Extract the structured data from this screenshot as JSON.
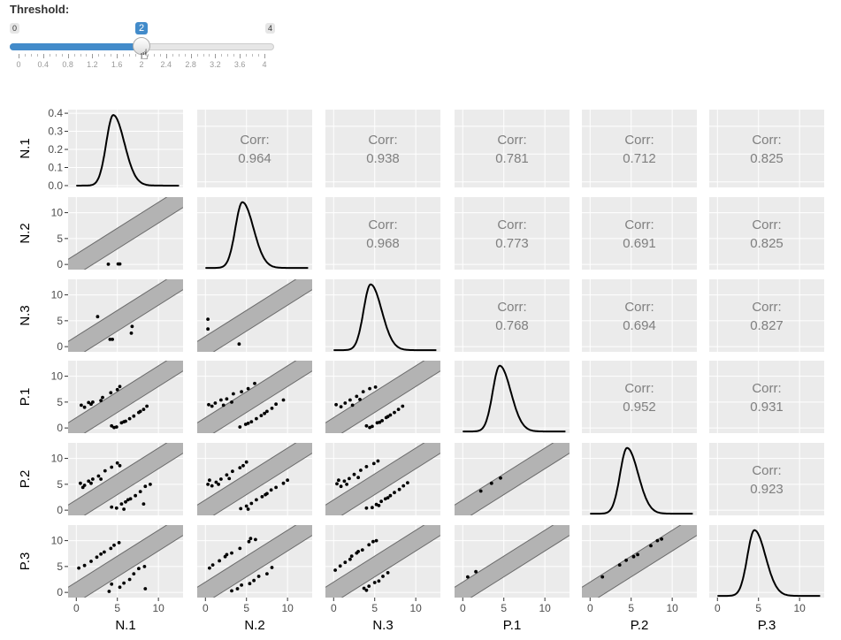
{
  "slider": {
    "label": "Threshold:",
    "min_label": "0",
    "max_label": "4",
    "value_label": "2",
    "min": 0,
    "max": 4,
    "value": 2,
    "tick_labels": [
      "0",
      "0.4",
      "0.8",
      "1.2",
      "1.6",
      "2",
      "2.4",
      "2.8",
      "3.2",
      "3.6",
      "4"
    ],
    "accent_color": "#428bca"
  },
  "chart_data": {
    "type": "scatter-matrix",
    "variables": [
      "N.1",
      "N.2",
      "N.3",
      "P.1",
      "P.2",
      "P.3"
    ],
    "correlation_prefix": "Corr:",
    "correlations": [
      {
        "row": "N.1",
        "col": "N.2",
        "value": "0.964"
      },
      {
        "row": "N.1",
        "col": "N.3",
        "value": "0.938"
      },
      {
        "row": "N.1",
        "col": "P.1",
        "value": "0.781"
      },
      {
        "row": "N.1",
        "col": "P.2",
        "value": "0.712"
      },
      {
        "row": "N.1",
        "col": "P.3",
        "value": "0.825"
      },
      {
        "row": "N.2",
        "col": "N.3",
        "value": "0.968"
      },
      {
        "row": "N.2",
        "col": "P.1",
        "value": "0.773"
      },
      {
        "row": "N.2",
        "col": "P.2",
        "value": "0.691"
      },
      {
        "row": "N.2",
        "col": "P.3",
        "value": "0.825"
      },
      {
        "row": "N.3",
        "col": "P.1",
        "value": "0.768"
      },
      {
        "row": "N.3",
        "col": "P.2",
        "value": "0.694"
      },
      {
        "row": "N.3",
        "col": "P.3",
        "value": "0.827"
      },
      {
        "row": "P.1",
        "col": "P.2",
        "value": "0.952"
      },
      {
        "row": "P.1",
        "col": "P.3",
        "value": "0.931"
      },
      {
        "row": "P.2",
        "col": "P.3",
        "value": "0.923"
      }
    ],
    "axis_range": [
      -1,
      13
    ],
    "axis_ticks": [
      0,
      5,
      10
    ],
    "axis_tick_labels": [
      "0",
      "5",
      "10"
    ],
    "density_y_range": [
      -0.01,
      0.42
    ],
    "density_y_ticks": [
      0,
      0.1,
      0.2,
      0.3,
      0.4
    ],
    "density_y_tick_labels": [
      "0.0",
      "0.1",
      "0.2",
      "0.3",
      "0.4"
    ],
    "band_half_width": 2,
    "density_peak": 0.39,
    "density_mode": 4.5,
    "colors": {
      "panel_bg": "#ebebeb",
      "gridline": "#ffffff",
      "band_fill": "#b3b3b3",
      "band_edge": "#6b6b6b",
      "point": "#000000",
      "corr_text": "#7f7f7f"
    },
    "outlier_points": {
      "N.2|N.1": [
        [
          3.9,
          0.05
        ],
        [
          5.1,
          0.1
        ],
        [
          5.3,
          0.1
        ]
      ],
      "N.3|N.1": [
        [
          2.6,
          5.8
        ],
        [
          4.1,
          1.4
        ],
        [
          4.4,
          1.4
        ],
        [
          6.8,
          3.9
        ],
        [
          6.7,
          2.6
        ]
      ],
      "N.3|N.2": [
        [
          0.3,
          5.3
        ],
        [
          0.3,
          3.4
        ],
        [
          4.1,
          0.5
        ]
      ],
      "P.1|N.1": [
        [
          0.6,
          4.4
        ],
        [
          1.0,
          4.0
        ],
        [
          1.5,
          4.9
        ],
        [
          2.0,
          5.0
        ],
        [
          3.2,
          5.9
        ],
        [
          4.2,
          6.8
        ],
        [
          5.3,
          8.0
        ],
        [
          5.0,
          7.4
        ],
        [
          3.0,
          5.3
        ],
        [
          1.8,
          4.6
        ],
        [
          4.3,
          0.4
        ],
        [
          4.9,
          0.2
        ],
        [
          5.5,
          1.0
        ],
        [
          6.0,
          1.3
        ],
        [
          6.5,
          1.8
        ],
        [
          7.0,
          2.3
        ],
        [
          7.6,
          3.0
        ],
        [
          8.2,
          3.6
        ],
        [
          8.6,
          4.2
        ],
        [
          7.8,
          3.2
        ],
        [
          5.8,
          1.2
        ],
        [
          4.6,
          0.1
        ]
      ],
      "P.1|N.2": [
        [
          0.4,
          4.5
        ],
        [
          0.8,
          4.2
        ],
        [
          1.2,
          4.8
        ],
        [
          1.9,
          5.4
        ],
        [
          2.6,
          5.6
        ],
        [
          3.4,
          6.6
        ],
        [
          4.4,
          7.0
        ],
        [
          5.2,
          7.6
        ],
        [
          6.0,
          8.6
        ],
        [
          3.2,
          5.0
        ],
        [
          2.2,
          4.4
        ],
        [
          4.2,
          0.2
        ],
        [
          4.9,
          0.7
        ],
        [
          5.6,
          1.2
        ],
        [
          6.2,
          1.8
        ],
        [
          6.8,
          2.4
        ],
        [
          7.5,
          3.2
        ],
        [
          8.1,
          3.8
        ],
        [
          8.6,
          4.6
        ],
        [
          7.2,
          2.8
        ],
        [
          5.2,
          0.9
        ],
        [
          9.5,
          5.4
        ]
      ],
      "P.1|N.3": [
        [
          0.3,
          4.5
        ],
        [
          0.9,
          4.1
        ],
        [
          1.4,
          4.8
        ],
        [
          2.0,
          5.4
        ],
        [
          2.8,
          6.1
        ],
        [
          3.6,
          7.0
        ],
        [
          4.4,
          7.6
        ],
        [
          5.1,
          7.9
        ],
        [
          3.2,
          5.5
        ],
        [
          2.3,
          4.4
        ],
        [
          4.0,
          0.4
        ],
        [
          4.7,
          0.3
        ],
        [
          5.3,
          1.0
        ],
        [
          5.9,
          1.4
        ],
        [
          6.4,
          2.0
        ],
        [
          6.9,
          2.5
        ],
        [
          7.4,
          3.0
        ],
        [
          7.9,
          3.6
        ],
        [
          8.4,
          4.2
        ],
        [
          6.6,
          2.2
        ],
        [
          5.6,
          1.1
        ],
        [
          4.4,
          0.1
        ]
      ],
      "P.2|N.1": [
        [
          0.5,
          5.2
        ],
        [
          1.0,
          4.8
        ],
        [
          1.5,
          5.6
        ],
        [
          2.0,
          6.0
        ],
        [
          2.7,
          6.6
        ],
        [
          3.5,
          7.6
        ],
        [
          4.3,
          8.3
        ],
        [
          5.0,
          9.1
        ],
        [
          5.3,
          8.6
        ],
        [
          3.0,
          6.0
        ],
        [
          1.8,
          5.2
        ],
        [
          0.8,
          4.4
        ],
        [
          4.3,
          0.6
        ],
        [
          4.9,
          0.4
        ],
        [
          5.5,
          1.2
        ],
        [
          6.0,
          1.6
        ],
        [
          6.6,
          2.2
        ],
        [
          7.2,
          2.8
        ],
        [
          7.8,
          3.6
        ],
        [
          8.4,
          4.6
        ],
        [
          9.0,
          5.0
        ],
        [
          8.2,
          1.2
        ],
        [
          6.3,
          2.0
        ],
        [
          5.8,
          0.2
        ]
      ],
      "P.2|N.2": [
        [
          0.3,
          5.0
        ],
        [
          0.8,
          4.7
        ],
        [
          1.3,
          5.4
        ],
        [
          1.9,
          6.0
        ],
        [
          2.6,
          6.8
        ],
        [
          3.3,
          7.5
        ],
        [
          4.2,
          8.2
        ],
        [
          5.0,
          9.3
        ],
        [
          4.6,
          8.6
        ],
        [
          2.9,
          6.1
        ],
        [
          1.6,
          5.0
        ],
        [
          0.5,
          5.8
        ],
        [
          4.3,
          0.3
        ],
        [
          5.0,
          0.8
        ],
        [
          5.6,
          1.3
        ],
        [
          6.2,
          2.0
        ],
        [
          6.9,
          2.6
        ],
        [
          7.5,
          3.2
        ],
        [
          8.0,
          3.9
        ],
        [
          8.6,
          4.4
        ],
        [
          9.5,
          5.2
        ],
        [
          10.0,
          5.8
        ],
        [
          7.3,
          3.0
        ],
        [
          5.2,
          0.2
        ]
      ],
      "P.2|N.3": [
        [
          0.4,
          5.1
        ],
        [
          0.9,
          4.6
        ],
        [
          1.3,
          5.6
        ],
        [
          1.9,
          6.1
        ],
        [
          2.5,
          6.9
        ],
        [
          3.3,
          7.7
        ],
        [
          4.0,
          8.4
        ],
        [
          4.9,
          9.0
        ],
        [
          5.4,
          9.5
        ],
        [
          3.0,
          6.3
        ],
        [
          1.6,
          5.0
        ],
        [
          0.6,
          5.8
        ],
        [
          4.0,
          0.4
        ],
        [
          4.7,
          0.5
        ],
        [
          5.2,
          1.1
        ],
        [
          5.8,
          1.7
        ],
        [
          6.3,
          2.2
        ],
        [
          6.9,
          2.8
        ],
        [
          7.4,
          3.4
        ],
        [
          8.0,
          4.0
        ],
        [
          8.5,
          4.7
        ],
        [
          9.0,
          5.3
        ],
        [
          6.6,
          2.4
        ],
        [
          5.5,
          0.9
        ]
      ],
      "P.2|P.1": [
        [
          2.2,
          3.7
        ],
        [
          3.5,
          5.2
        ],
        [
          4.6,
          6.2
        ]
      ],
      "P.3|N.1": [
        [
          0.3,
          4.7
        ],
        [
          1.0,
          5.2
        ],
        [
          1.8,
          6.0
        ],
        [
          2.5,
          6.8
        ],
        [
          3.4,
          7.8
        ],
        [
          4.2,
          8.5
        ],
        [
          5.2,
          9.6
        ],
        [
          4.3,
          1.6
        ],
        [
          4.0,
          0.2
        ],
        [
          5.3,
          1.0
        ],
        [
          5.8,
          1.8
        ],
        [
          6.5,
          2.5
        ],
        [
          7.0,
          3.6
        ],
        [
          7.6,
          4.6
        ],
        [
          8.3,
          5.0
        ],
        [
          8.4,
          0.7
        ],
        [
          3.0,
          7.4
        ],
        [
          4.6,
          9.1
        ]
      ],
      "P.3|N.2": [
        [
          0.5,
          4.7
        ],
        [
          0.9,
          5.3
        ],
        [
          1.7,
          6.1
        ],
        [
          2.4,
          6.9
        ],
        [
          3.2,
          7.6
        ],
        [
          4.2,
          8.5
        ],
        [
          5.3,
          9.8
        ],
        [
          6.1,
          10.2
        ],
        [
          5.5,
          10.4
        ],
        [
          3.9,
          0.7
        ],
        [
          4.4,
          1.4
        ],
        [
          5.4,
          1.7
        ],
        [
          5.9,
          2.3
        ],
        [
          6.5,
          3.1
        ],
        [
          7.5,
          3.6
        ],
        [
          8.1,
          4.8
        ],
        [
          3.2,
          0.3
        ],
        [
          2.6,
          7.3
        ]
      ],
      "P.3|N.3": [
        [
          0.2,
          4.3
        ],
        [
          0.8,
          5.1
        ],
        [
          1.4,
          5.8
        ],
        [
          2.0,
          6.4
        ],
        [
          2.8,
          7.6
        ],
        [
          3.5,
          8.2
        ],
        [
          4.3,
          9.2
        ],
        [
          5.2,
          10.0
        ],
        [
          4.8,
          9.8
        ],
        [
          3.7,
          0.8
        ],
        [
          4.3,
          1.2
        ],
        [
          5.0,
          1.9
        ],
        [
          5.5,
          2.2
        ],
        [
          6.0,
          3.1
        ],
        [
          6.6,
          3.8
        ],
        [
          3.0,
          7.9
        ],
        [
          2.2,
          7.0
        ],
        [
          4.0,
          0.4
        ]
      ],
      "P.3|P.1": [
        [
          0.6,
          3.0
        ],
        [
          1.6,
          4.0
        ]
      ],
      "P.3|P.2": [
        [
          1.5,
          3.0
        ],
        [
          3.6,
          5.3
        ],
        [
          4.4,
          6.2
        ],
        [
          5.8,
          7.3
        ],
        [
          7.4,
          9.0
        ],
        [
          8.2,
          10.0
        ],
        [
          8.7,
          10.3
        ],
        [
          5.3,
          6.9
        ]
      ]
    }
  }
}
